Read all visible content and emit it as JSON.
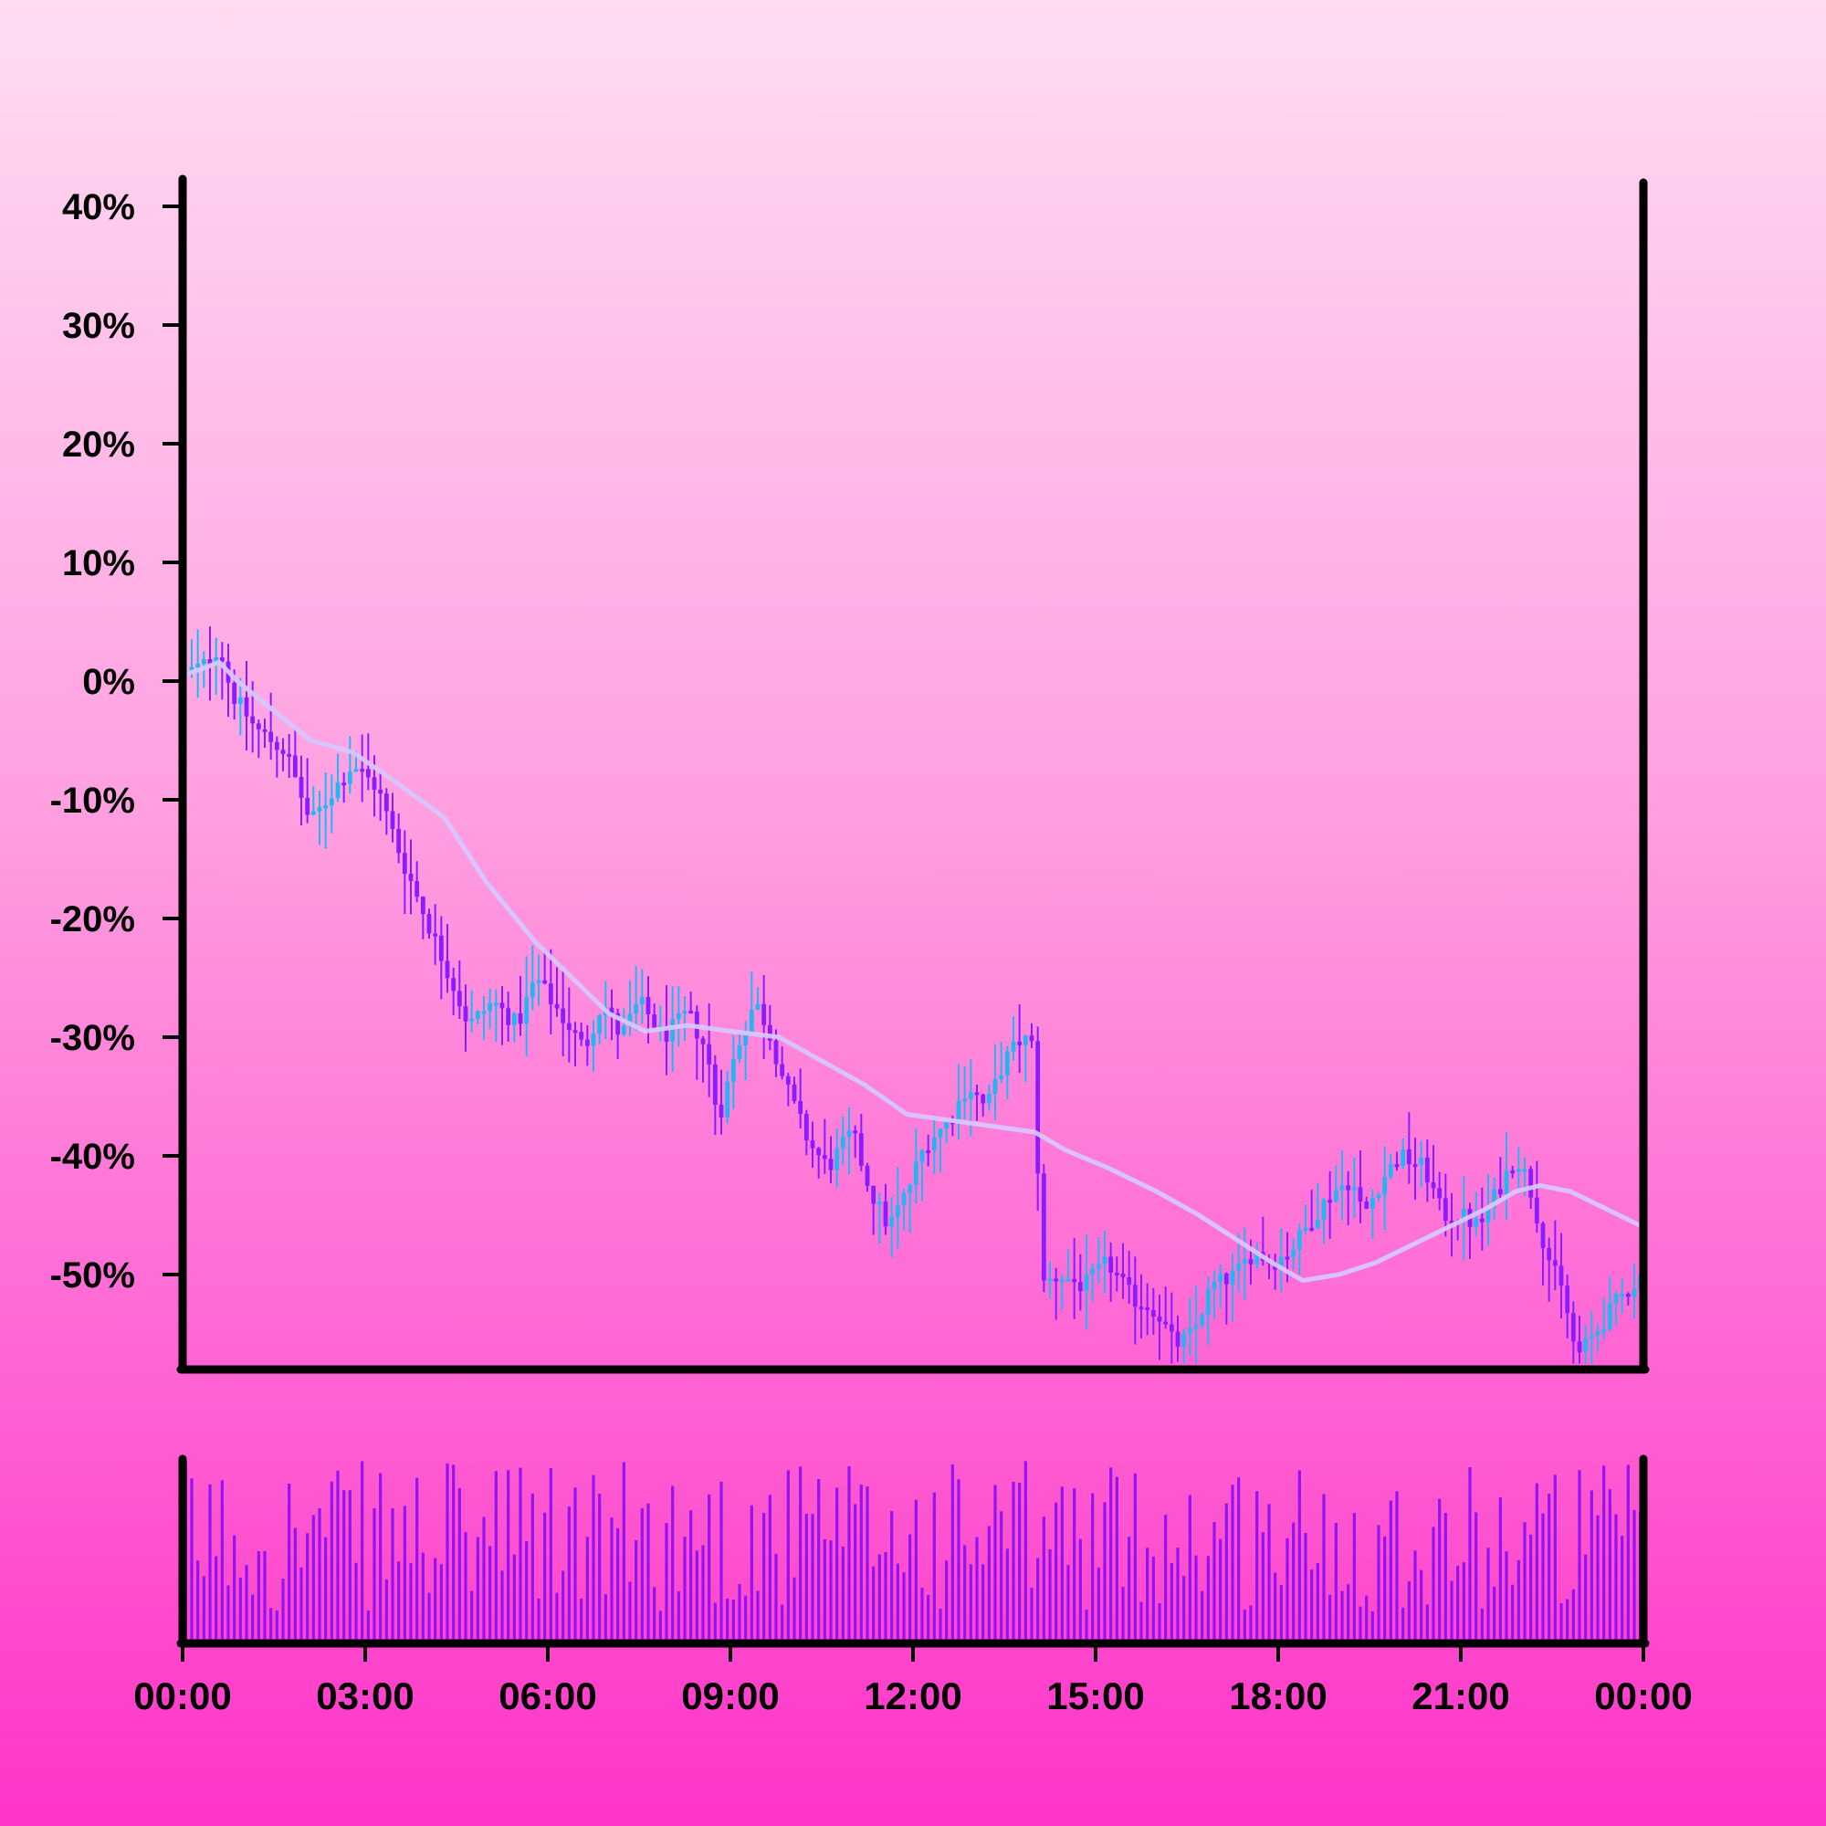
{
  "colors": {
    "up": "#1fb8f2",
    "down": "#8b1cff",
    "moving_average": "#d7c6ff",
    "volume": "#9413f0",
    "axis": "#000000",
    "background_top": "#ffdcf2",
    "background_bottom": "#ff33c9"
  },
  "chart_data": {
    "type": "candlestick",
    "title": "",
    "xlabel": "",
    "ylabel": "",
    "x_tick_labels": [
      "00:00",
      "03:00",
      "06:00",
      "09:00",
      "12:00",
      "15:00",
      "18:00",
      "21:00",
      "00:00"
    ],
    "x_range_hours": [
      0,
      24
    ],
    "y_tick_labels": [
      "40%",
      "30%",
      "20%",
      "10%",
      "0%",
      "-10%",
      "-20%",
      "-30%",
      "-40%",
      "-50%"
    ],
    "y_ticks": [
      40,
      30,
      20,
      10,
      0,
      -10,
      -20,
      -30,
      -40,
      -50
    ],
    "ylim": [
      -57.5,
      42
    ],
    "candle_interval_minutes": 6,
    "close_path": [
      [
        0,
        0.5
      ],
      [
        0.4,
        1.5
      ],
      [
        0.6,
        3
      ],
      [
        0.8,
        -1
      ],
      [
        1.2,
        -4
      ],
      [
        1.7,
        -6
      ],
      [
        2.1,
        -12
      ],
      [
        2.5,
        -9
      ],
      [
        2.8,
        -7
      ],
      [
        3.2,
        -9
      ],
      [
        3.6,
        -15
      ],
      [
        4.0,
        -20
      ],
      [
        4.4,
        -25
      ],
      [
        4.7,
        -29
      ],
      [
        5.1,
        -27
      ],
      [
        5.5,
        -29
      ],
      [
        5.8,
        -25
      ],
      [
        6.2,
        -28
      ],
      [
        6.6,
        -31
      ],
      [
        6.9,
        -27
      ],
      [
        7.2,
        -30
      ],
      [
        7.5,
        -27
      ],
      [
        7.9,
        -30
      ],
      [
        8.3,
        -28
      ],
      [
        8.6,
        -31
      ],
      [
        8.8,
        -37
      ],
      [
        9.1,
        -31
      ],
      [
        9.4,
        -27
      ],
      [
        9.6,
        -29
      ],
      [
        9.9,
        -34
      ],
      [
        10.3,
        -39
      ],
      [
        10.6,
        -41
      ],
      [
        11.0,
        -38
      ],
      [
        11.3,
        -43
      ],
      [
        11.6,
        -46
      ],
      [
        11.9,
        -43
      ],
      [
        12.2,
        -39
      ],
      [
        12.6,
        -37
      ],
      [
        12.9,
        -34
      ],
      [
        13.2,
        -36
      ],
      [
        13.5,
        -32
      ],
      [
        13.8,
        -30
      ],
      [
        14.0,
        -31
      ],
      [
        14.1,
        -51
      ],
      [
        14.4,
        -50
      ],
      [
        14.8,
        -51
      ],
      [
        15.2,
        -49
      ],
      [
        15.6,
        -52
      ],
      [
        16.0,
        -53
      ],
      [
        16.3,
        -56
      ],
      [
        16.6,
        -55
      ],
      [
        16.9,
        -51
      ],
      [
        17.3,
        -50
      ],
      [
        17.6,
        -48
      ],
      [
        17.9,
        -49
      ],
      [
        18.2,
        -48
      ],
      [
        18.6,
        -45
      ],
      [
        18.9,
        -43
      ],
      [
        19.2,
        -42
      ],
      [
        19.4,
        -45
      ],
      [
        19.7,
        -42
      ],
      [
        20.0,
        -40
      ],
      [
        20.4,
        -41
      ],
      [
        20.7,
        -45
      ],
      [
        21.0,
        -45
      ],
      [
        21.3,
        -46
      ],
      [
        21.6,
        -43
      ],
      [
        21.9,
        -40
      ],
      [
        22.1,
        -42
      ],
      [
        22.4,
        -48
      ],
      [
        22.7,
        -52
      ],
      [
        22.9,
        -57
      ],
      [
        23.2,
        -55
      ],
      [
        23.6,
        -52
      ],
      [
        24.0,
        -50
      ]
    ],
    "moving_average": {
      "type": "line",
      "path": [
        [
          0,
          0.5
        ],
        [
          0.3,
          1
        ],
        [
          0.6,
          1.6
        ],
        [
          0.9,
          0
        ],
        [
          1.5,
          -2.5
        ],
        [
          2.1,
          -5
        ],
        [
          2.8,
          -6
        ],
        [
          3.5,
          -8.5
        ],
        [
          4.3,
          -11.5
        ],
        [
          5.0,
          -17
        ],
        [
          5.8,
          -22
        ],
        [
          6.4,
          -25
        ],
        [
          7.0,
          -28
        ],
        [
          7.6,
          -29.5
        ],
        [
          8.3,
          -29
        ],
        [
          9.0,
          -29.5
        ],
        [
          9.8,
          -30
        ],
        [
          10.5,
          -32
        ],
        [
          11.2,
          -34
        ],
        [
          11.9,
          -36.5
        ],
        [
          12.6,
          -37
        ],
        [
          13.3,
          -37.5
        ],
        [
          14.0,
          -38
        ],
        [
          14.5,
          -39.5
        ],
        [
          15.2,
          -41
        ],
        [
          16.0,
          -43
        ],
        [
          16.7,
          -45
        ],
        [
          17.3,
          -47
        ],
        [
          17.9,
          -49
        ],
        [
          18.4,
          -50.5
        ],
        [
          19.0,
          -50
        ],
        [
          19.6,
          -49
        ],
        [
          20.2,
          -47.5
        ],
        [
          20.8,
          -46
        ],
        [
          21.4,
          -44.5
        ],
        [
          21.9,
          -43
        ],
        [
          22.3,
          -42.5
        ],
        [
          22.8,
          -43
        ],
        [
          23.4,
          -44.5
        ],
        [
          24.0,
          -46
        ]
      ]
    },
    "volume": {
      "type": "bar",
      "axis_labels": "none",
      "relative_range": [
        0.02,
        1.0
      ]
    },
    "grid": false,
    "legend": "none"
  }
}
